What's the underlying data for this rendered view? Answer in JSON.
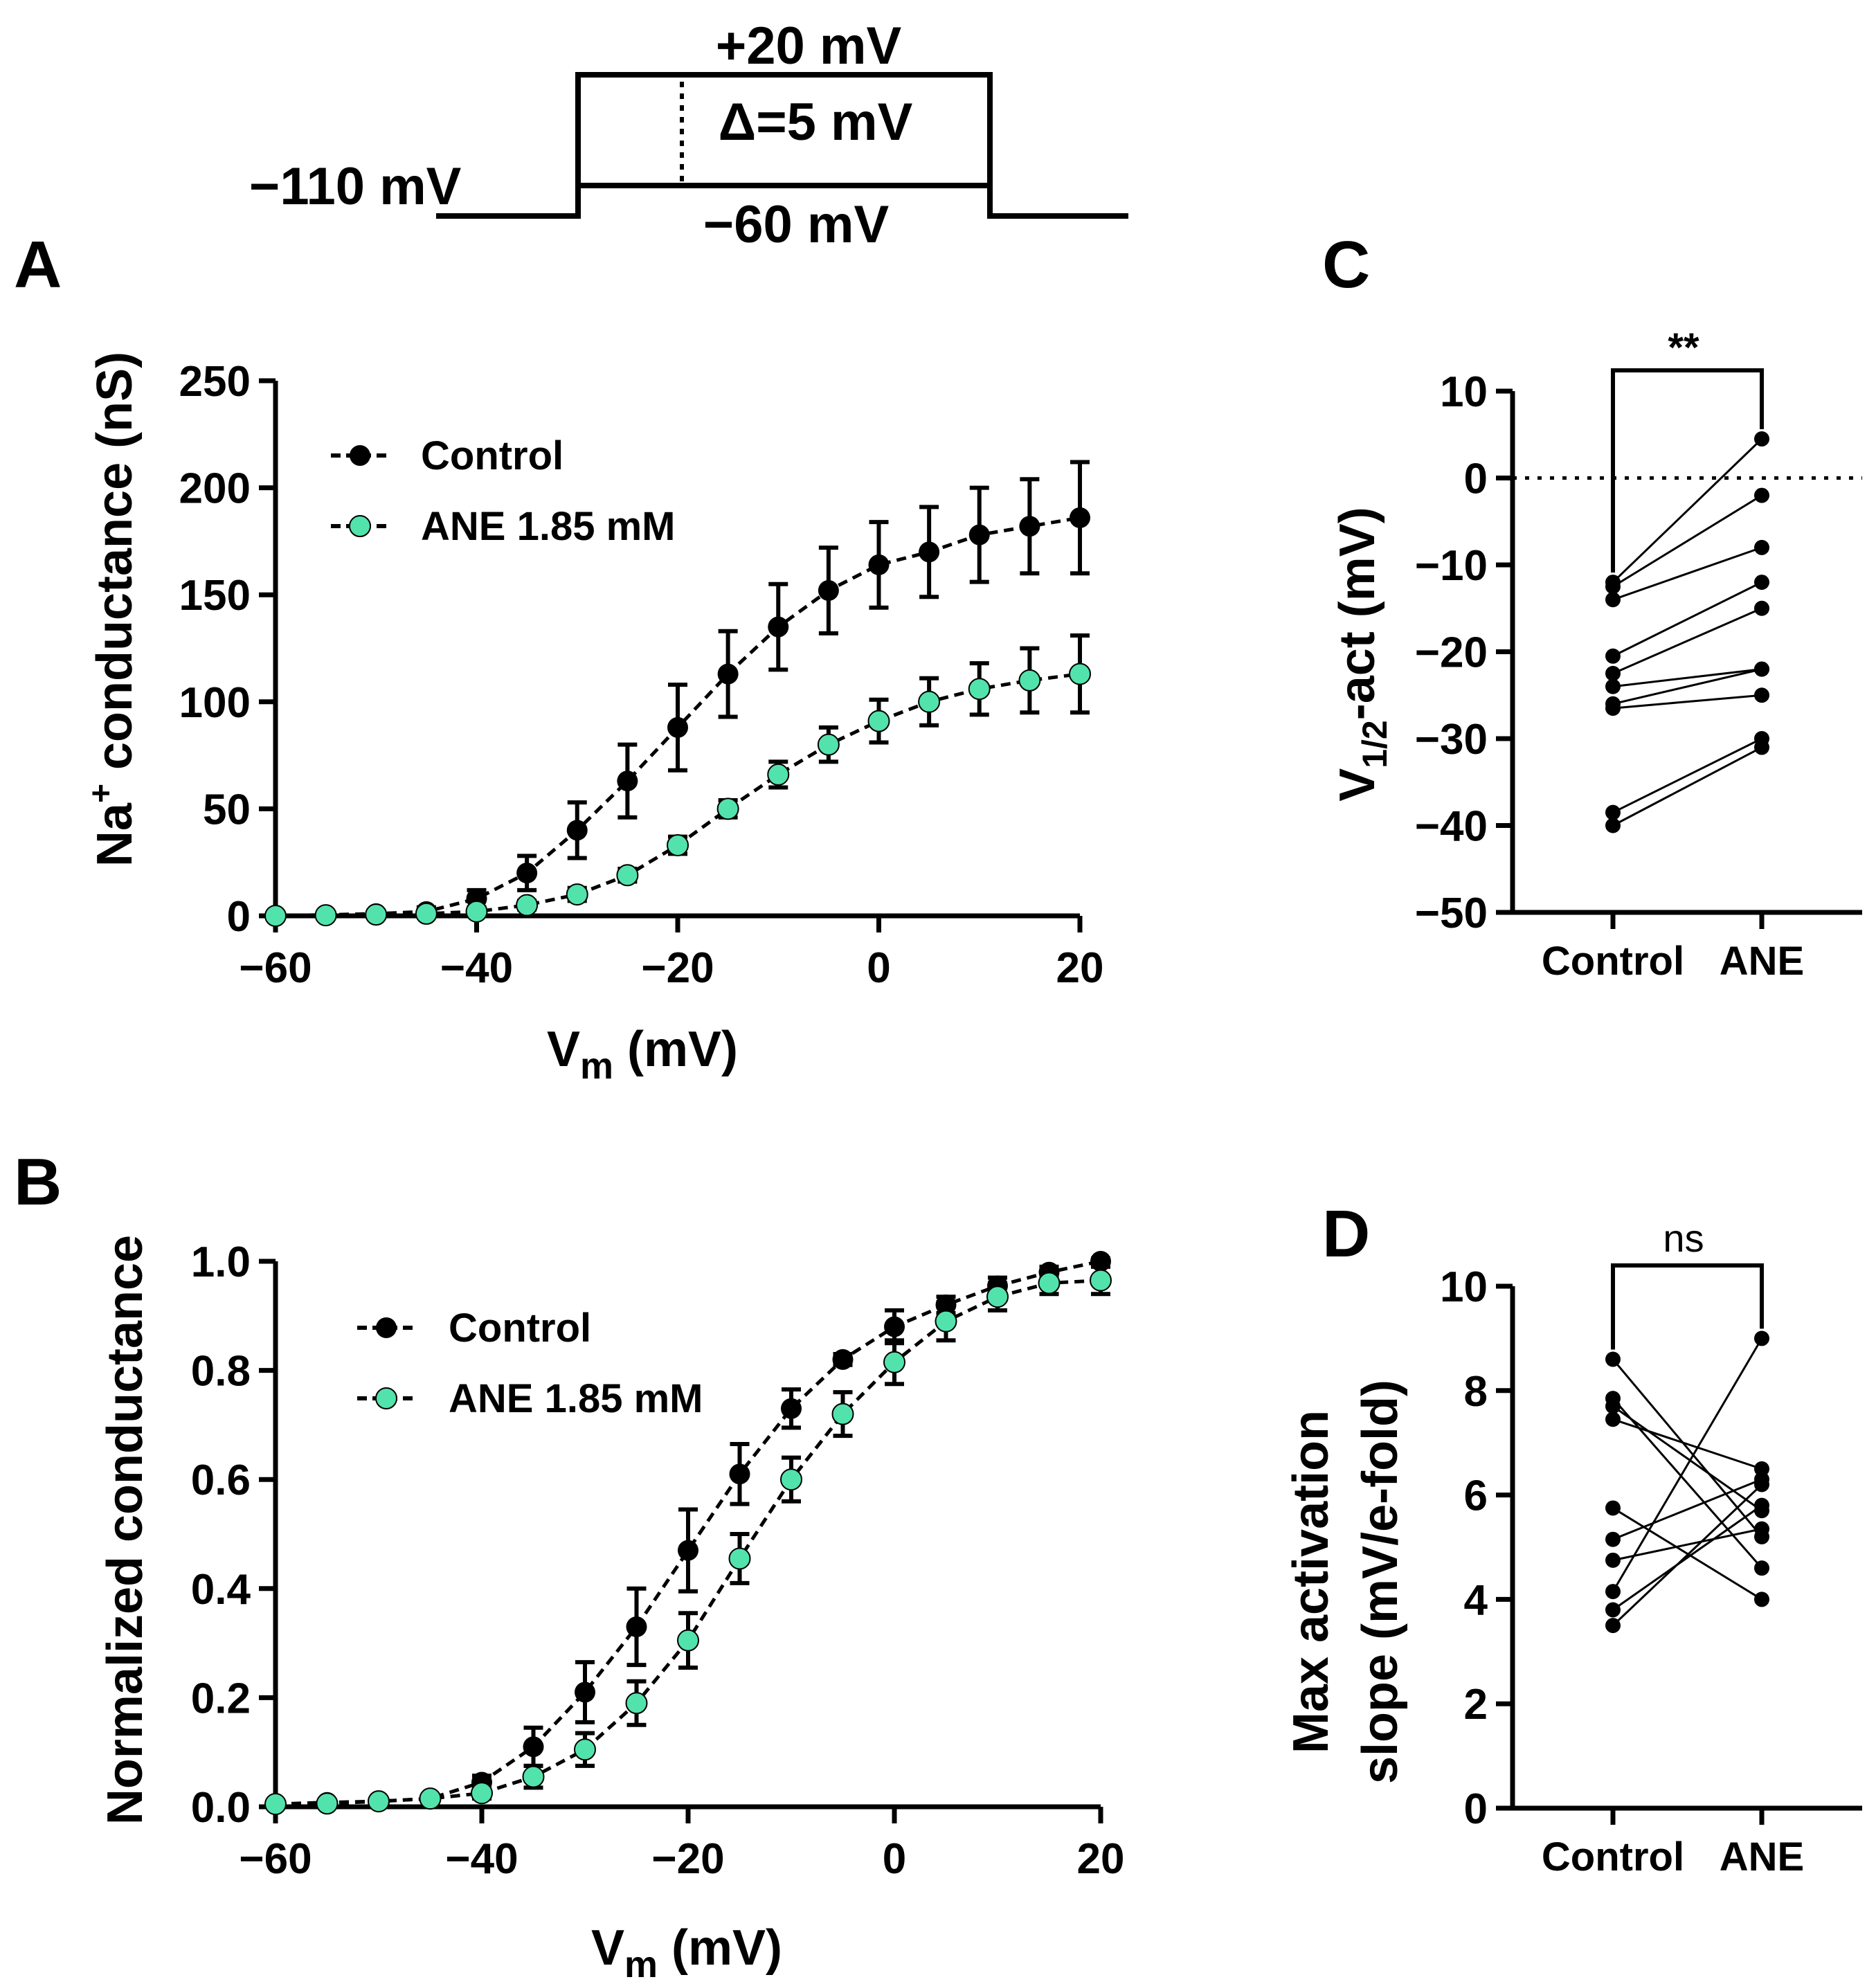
{
  "colors": {
    "control": "#000000",
    "ane": "#52e3ac",
    "axis": "#000000"
  },
  "protocol": {
    "holding_label": "−110 mV",
    "top_label": "+20 mV",
    "bottom_label": "−60 mV",
    "step_label": "Δ=5 mV"
  },
  "panels": {
    "A": {
      "letter": "A",
      "ylabel_pre": "Na",
      "ylabel_sup": "+",
      "ylabel_post": " conductance (nS)",
      "xlabel_main": "V",
      "xlabel_sub": "m",
      "xlabel_unit": " (mV)"
    },
    "B": {
      "letter": "B",
      "ylabel": "Normalized conductance",
      "xlabel_main": "V",
      "xlabel_sub": "m",
      "xlabel_unit": " (mV)"
    },
    "C": {
      "letter": "C",
      "ylabel_pre": "V",
      "ylabel_sub": "1/2",
      "ylabel_post": "-act (mV)",
      "significance": "**"
    },
    "D": {
      "letter": "D",
      "ylabel_line1": "Max activation",
      "ylabel_line2": "slope (mV/e-fold)",
      "significance": "ns"
    }
  },
  "chart_data": [
    {
      "id": "A",
      "type": "line",
      "xlabel": "Vm (mV)",
      "ylabel": "Na+ conductance (nS)",
      "xlim": [
        -60,
        20
      ],
      "ylim": [
        0,
        250
      ],
      "xticks": [
        -60,
        -40,
        -20,
        0,
        20
      ],
      "xtick_labels": [
        "−60",
        "−40",
        "−20",
        "0",
        "20"
      ],
      "yticks": [
        0,
        50,
        100,
        150,
        200,
        250
      ],
      "ytick_labels": [
        "0",
        "50",
        "100",
        "150",
        "200",
        "250"
      ],
      "x": [
        -60,
        -55,
        -50,
        -45,
        -40,
        -35,
        -30,
        -25,
        -20,
        -15,
        -10,
        -5,
        0,
        5,
        10,
        15,
        20
      ],
      "series": [
        {
          "name": "Control",
          "color": "#000000",
          "values": [
            0,
            0.5,
            1,
            2,
            8,
            20,
            40,
            63,
            88,
            113,
            135,
            152,
            164,
            170,
            178,
            182,
            186
          ],
          "errors": [
            0,
            0.5,
            1,
            2,
            4,
            8,
            13,
            17,
            20,
            20,
            20,
            20,
            20,
            21,
            22,
            22,
            26
          ]
        },
        {
          "name": "ANE 1.85 mM",
          "color": "#52e3ac",
          "values": [
            0,
            0.3,
            0.6,
            1,
            2,
            5,
            10,
            19,
            33,
            50,
            66,
            80,
            91,
            100,
            106,
            110,
            113
          ],
          "errors": [
            0,
            0.3,
            0.5,
            1,
            1,
            2,
            3,
            3,
            4,
            4,
            6,
            8,
            10,
            11,
            12,
            15,
            18
          ]
        }
      ]
    },
    {
      "id": "B",
      "type": "line",
      "xlabel": "Vm (mV)",
      "ylabel": "Normalized conductance",
      "xlim": [
        -60,
        20
      ],
      "ylim": [
        0,
        1.0
      ],
      "xticks": [
        -60,
        -40,
        -20,
        0,
        20
      ],
      "xtick_labels": [
        "−60",
        "−40",
        "−20",
        "0",
        "20"
      ],
      "yticks": [
        0,
        0.2,
        0.4,
        0.6,
        0.8,
        1.0
      ],
      "ytick_labels": [
        "0.0",
        "0.2",
        "0.4",
        "0.6",
        "0.8",
        "1.0"
      ],
      "x": [
        -60,
        -55,
        -50,
        -45,
        -40,
        -35,
        -30,
        -25,
        -20,
        -15,
        -10,
        -5,
        0,
        5,
        10,
        15,
        20
      ],
      "series": [
        {
          "name": "Control",
          "color": "#000000",
          "values": [
            0.005,
            0.008,
            0.01,
            0.015,
            0.045,
            0.11,
            0.21,
            0.33,
            0.47,
            0.61,
            0.73,
            0.82,
            0.88,
            0.92,
            0.955,
            0.98,
            1.0
          ],
          "errors": [
            0.002,
            0.002,
            0.004,
            0.006,
            0.012,
            0.035,
            0.055,
            0.07,
            0.075,
            0.055,
            0.035,
            0.01,
            0.03,
            0.015,
            0.015,
            0.01,
            0.005
          ]
        },
        {
          "name": "ANE 1.85 mM",
          "color": "#52e3ac",
          "values": [
            0.005,
            0.006,
            0.01,
            0.015,
            0.025,
            0.055,
            0.105,
            0.19,
            0.305,
            0.455,
            0.6,
            0.72,
            0.815,
            0.89,
            0.935,
            0.96,
            0.965
          ],
          "errors": [
            0.002,
            0.002,
            0.003,
            0.006,
            0.01,
            0.02,
            0.03,
            0.04,
            0.05,
            0.045,
            0.04,
            0.04,
            0.04,
            0.035,
            0.025,
            0.02,
            0.025
          ]
        }
      ]
    },
    {
      "id": "C",
      "type": "scatter",
      "paired": true,
      "categories": [
        "Control",
        "ANE"
      ],
      "ylabel": "V1/2-act (mV)",
      "ylim": [
        -50,
        10
      ],
      "yticks": [
        -50,
        -40,
        -30,
        -20,
        -10,
        0,
        10
      ],
      "ytick_labels": [
        "−50",
        "−40",
        "−30",
        "−20",
        "−10",
        "0",
        "10"
      ],
      "reference_line": 0,
      "significance": "**",
      "pairs": [
        [
          -12,
          4.5
        ],
        [
          -12.5,
          -2
        ],
        [
          -14,
          -8
        ],
        [
          -20.5,
          -12
        ],
        [
          -22.5,
          -15
        ],
        [
          -24,
          -22
        ],
        [
          -26,
          -22
        ],
        [
          -26.5,
          -25
        ],
        [
          -38.5,
          -30
        ],
        [
          -40,
          -31
        ]
      ]
    },
    {
      "id": "D",
      "type": "scatter",
      "paired": true,
      "categories": [
        "Control",
        "ANE"
      ],
      "ylabel": "Max activation slope (mV/e-fold)",
      "ylim": [
        0,
        10
      ],
      "yticks": [
        0,
        2,
        4,
        6,
        8,
        10
      ],
      "ytick_labels": [
        "0",
        "2",
        "4",
        "6",
        "8",
        "10"
      ],
      "significance": "ns",
      "pairs": [
        [
          8.6,
          5.2
        ],
        [
          7.85,
          4.6
        ],
        [
          7.7,
          5.7
        ],
        [
          7.45,
          6.5
        ],
        [
          5.75,
          4.0
        ],
        [
          5.15,
          6.3
        ],
        [
          4.75,
          5.35
        ],
        [
          4.15,
          9.0
        ],
        [
          3.8,
          5.8
        ],
        [
          3.5,
          6.2
        ]
      ]
    }
  ]
}
